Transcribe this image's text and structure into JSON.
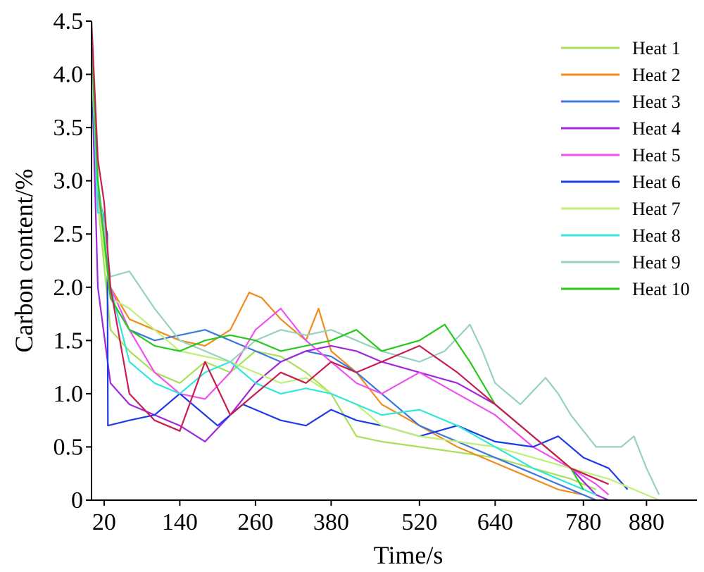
{
  "chart_data": {
    "type": "line",
    "title": "",
    "xlabel": "Time/s",
    "ylabel": "Carbon content/%",
    "xlim": [
      0,
      960
    ],
    "ylim": [
      0,
      4.5
    ],
    "x_ticks": [
      20,
      140,
      260,
      380,
      520,
      640,
      780,
      880
    ],
    "y_ticks": [
      0,
      0.5,
      1.0,
      1.5,
      2.0,
      2.5,
      3.0,
      3.5,
      4.0,
      4.5
    ],
    "y_tick_labels": [
      "0",
      "0.5",
      "1.0",
      "1.5",
      "2.0",
      "2.5",
      "3.0",
      "3.5",
      "4.0",
      "4.5"
    ],
    "grid": false,
    "legend_position": "top-right",
    "series": [
      {
        "name": "Heat 1",
        "color": "#a8e05a",
        "x": [
          0,
          10,
          30,
          60,
          100,
          140,
          180,
          220,
          260,
          300,
          340,
          380,
          420,
          460,
          520,
          580,
          640,
          700,
          760,
          800
        ],
        "y": [
          4.2,
          2.8,
          1.6,
          1.4,
          1.2,
          1.1,
          1.3,
          1.2,
          1.4,
          1.35,
          1.2,
          1.0,
          0.6,
          0.55,
          0.5,
          0.45,
          0.4,
          0.3,
          0.2,
          0.1
        ]
      },
      {
        "name": "Heat 2",
        "color": "#f08c1e",
        "x": [
          0,
          10,
          30,
          60,
          100,
          140,
          180,
          220,
          250,
          270,
          300,
          340,
          360,
          380,
          420,
          460,
          520,
          580,
          640,
          700,
          740,
          780,
          800
        ],
        "y": [
          4.4,
          3.0,
          2.0,
          1.7,
          1.6,
          1.5,
          1.45,
          1.6,
          1.95,
          1.9,
          1.7,
          1.5,
          1.8,
          1.4,
          1.2,
          0.9,
          0.7,
          0.5,
          0.35,
          0.2,
          0.1,
          0.05,
          0.0
        ]
      },
      {
        "name": "Heat 3",
        "color": "#3c78dc",
        "x": [
          0,
          10,
          30,
          60,
          100,
          140,
          180,
          220,
          260,
          300,
          340,
          380,
          420,
          460,
          520,
          580,
          640,
          700,
          760,
          800
        ],
        "y": [
          4.0,
          2.9,
          1.9,
          1.6,
          1.5,
          1.55,
          1.6,
          1.5,
          1.4,
          1.3,
          1.4,
          1.35,
          1.2,
          1.0,
          0.7,
          0.55,
          0.4,
          0.25,
          0.1,
          0.0
        ]
      },
      {
        "name": "Heat 4",
        "color": "#a028dc",
        "x": [
          0,
          10,
          30,
          60,
          100,
          140,
          180,
          220,
          260,
          300,
          340,
          380,
          420,
          460,
          520,
          580,
          640,
          700,
          760,
          800,
          820
        ],
        "y": [
          4.1,
          2.0,
          1.1,
          0.9,
          0.8,
          0.7,
          0.55,
          0.8,
          1.1,
          1.3,
          1.4,
          1.45,
          1.4,
          1.3,
          1.2,
          1.1,
          0.9,
          0.6,
          0.3,
          0.05,
          0.0
        ]
      },
      {
        "name": "Heat 5",
        "color": "#f050f0",
        "x": [
          0,
          10,
          30,
          60,
          100,
          140,
          180,
          220,
          260,
          300,
          340,
          380,
          420,
          460,
          520,
          580,
          640,
          700,
          760,
          800,
          820
        ],
        "y": [
          4.3,
          2.9,
          2.0,
          1.6,
          1.2,
          1.0,
          0.95,
          1.2,
          1.6,
          1.8,
          1.5,
          1.3,
          1.1,
          1.0,
          1.2,
          1.0,
          0.8,
          0.5,
          0.3,
          0.15,
          0.05
        ]
      },
      {
        "name": "Heat 6",
        "color": "#1e3ce6",
        "x": [
          0,
          10,
          25,
          26,
          60,
          100,
          140,
          180,
          200,
          240,
          280,
          300,
          340,
          380,
          420,
          460,
          520,
          580,
          640,
          700,
          740,
          780,
          820,
          850
        ],
        "y": [
          3.9,
          2.9,
          2.5,
          0.7,
          0.75,
          0.8,
          1.0,
          0.8,
          0.7,
          0.9,
          0.8,
          0.75,
          0.7,
          0.85,
          0.75,
          0.7,
          0.6,
          0.7,
          0.55,
          0.5,
          0.6,
          0.4,
          0.3,
          0.1
        ]
      },
      {
        "name": "Heat 7",
        "color": "#bef07a",
        "x": [
          0,
          10,
          30,
          60,
          100,
          140,
          180,
          220,
          260,
          300,
          340,
          380,
          420,
          460,
          520,
          580,
          640,
          700,
          760,
          820,
          860,
          900
        ],
        "y": [
          4.1,
          2.8,
          1.9,
          1.8,
          1.6,
          1.4,
          1.35,
          1.3,
          1.2,
          1.1,
          1.15,
          1.0,
          0.9,
          0.7,
          0.6,
          0.55,
          0.5,
          0.4,
          0.3,
          0.2,
          0.1,
          0.0
        ]
      },
      {
        "name": "Heat 8",
        "color": "#32e6dc",
        "x": [
          0,
          10,
          20,
          30,
          60,
          100,
          140,
          180,
          220,
          260,
          300,
          340,
          380,
          420,
          460,
          520,
          580,
          640,
          700,
          760,
          800
        ],
        "y": [
          4.2,
          2.7,
          2.7,
          2.0,
          1.3,
          1.1,
          1.0,
          1.2,
          1.3,
          1.1,
          1.0,
          1.05,
          1.0,
          0.9,
          0.8,
          0.85,
          0.7,
          0.5,
          0.3,
          0.15,
          0.05
        ]
      },
      {
        "name": "Heat 9",
        "color": "#96d2be",
        "x": [
          0,
          10,
          30,
          60,
          100,
          140,
          180,
          220,
          260,
          300,
          340,
          380,
          420,
          460,
          520,
          560,
          600,
          620,
          640,
          680,
          720,
          740,
          760,
          800,
          840,
          860,
          880,
          900
        ],
        "y": [
          4.1,
          3.0,
          2.1,
          2.15,
          1.8,
          1.5,
          1.4,
          1.3,
          1.5,
          1.6,
          1.55,
          1.6,
          1.5,
          1.4,
          1.3,
          1.4,
          1.65,
          1.4,
          1.1,
          0.9,
          1.15,
          1.0,
          0.8,
          0.5,
          0.5,
          0.6,
          0.3,
          0.05
        ]
      },
      {
        "name": "Heat 10",
        "color": "#28c81e",
        "x": [
          0,
          10,
          30,
          60,
          100,
          140,
          180,
          220,
          260,
          300,
          340,
          380,
          420,
          460,
          520,
          560,
          600,
          640,
          680,
          720,
          760,
          780
        ],
        "y": [
          4.3,
          3.0,
          1.9,
          1.6,
          1.45,
          1.4,
          1.5,
          1.55,
          1.5,
          1.4,
          1.45,
          1.5,
          1.6,
          1.4,
          1.5,
          1.65,
          1.3,
          0.9,
          0.7,
          0.5,
          0.3,
          0.1
        ]
      },
      {
        "name": "",
        "color": "#c81e50",
        "x": [
          0,
          10,
          20,
          30,
          60,
          100,
          140,
          180,
          220,
          260,
          300,
          340,
          380,
          420,
          460,
          520,
          580,
          640,
          700,
          760,
          820
        ],
        "y": [
          4.5,
          3.2,
          2.8,
          2.0,
          1.0,
          0.75,
          0.65,
          1.3,
          0.8,
          1.0,
          1.2,
          1.1,
          1.3,
          1.2,
          1.3,
          1.45,
          1.2,
          0.9,
          0.6,
          0.3,
          0.15
        ]
      }
    ]
  }
}
